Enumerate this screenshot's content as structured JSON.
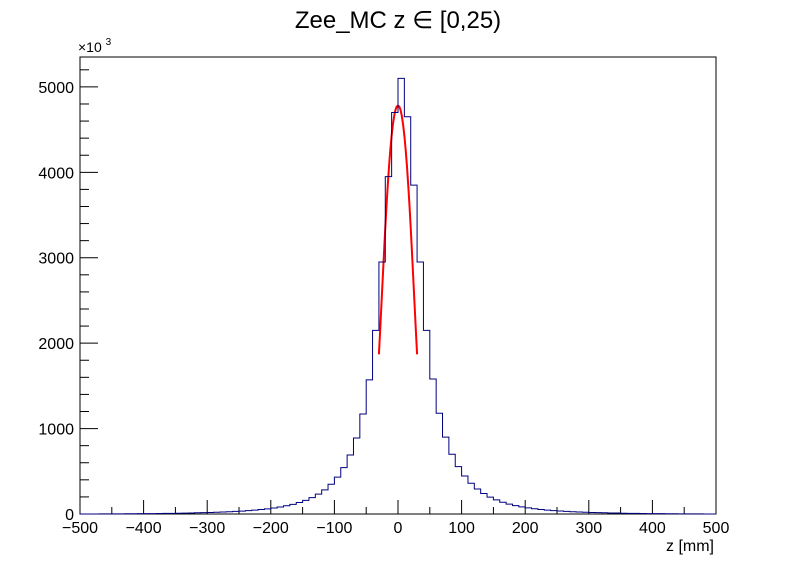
{
  "chart_data": {
    "type": "histogram",
    "title": "Zee_MC z ∈ [0,25)",
    "xlabel": "z [mm]",
    "ylabel": "",
    "y_multiplier_label": "×10",
    "y_multiplier_exponent": "3",
    "xlim": [
      -500,
      500
    ],
    "ylim": [
      0,
      5350
    ],
    "x_ticks": [
      -500,
      -400,
      -300,
      -200,
      -100,
      0,
      100,
      200,
      300,
      400,
      500
    ],
    "y_ticks": [
      0,
      1000,
      2000,
      3000,
      4000,
      5000
    ],
    "grid": false,
    "legend": "none",
    "bin_width": 10,
    "series": [
      {
        "kind": "histogram",
        "color": "#00007f",
        "bin_low_edges": [
          -500,
          -490,
          -480,
          -470,
          -460,
          -450,
          -440,
          -430,
          -420,
          -410,
          -400,
          -390,
          -380,
          -370,
          -360,
          -350,
          -340,
          -330,
          -320,
          -310,
          -300,
          -290,
          -280,
          -270,
          -260,
          -250,
          -240,
          -230,
          -220,
          -210,
          -200,
          -190,
          -180,
          -170,
          -160,
          -150,
          -140,
          -130,
          -120,
          -110,
          -100,
          -90,
          -80,
          -70,
          -60,
          -50,
          -40,
          -30,
          -20,
          -10,
          0,
          10,
          20,
          30,
          40,
          50,
          60,
          70,
          80,
          90,
          100,
          110,
          120,
          130,
          140,
          150,
          160,
          170,
          180,
          190,
          200,
          210,
          220,
          230,
          240,
          250,
          260,
          270,
          280,
          290,
          300,
          310,
          320,
          330,
          340,
          350,
          360,
          370,
          380,
          390,
          400,
          410,
          420,
          430,
          440,
          450,
          460,
          470,
          480,
          490
        ],
        "values": [
          0,
          0,
          0,
          1,
          1,
          2,
          2,
          3,
          3,
          4,
          4,
          5,
          6,
          7,
          8,
          9,
          10,
          12,
          14,
          16,
          18,
          20,
          23,
          26,
          30,
          34,
          39,
          45,
          52,
          60,
          70,
          82,
          96,
          113,
          134,
          160,
          192,
          232,
          283,
          348,
          432,
          543,
          690,
          890,
          1170,
          1570,
          2150,
          2950,
          3950,
          4700,
          5100,
          4650,
          3850,
          2950,
          2150,
          1580,
          1180,
          900,
          700,
          555,
          445,
          360,
          292,
          240,
          198,
          165,
          138,
          116,
          98,
          83,
          71,
          61,
          53,
          46,
          40,
          35,
          31,
          27,
          24,
          21,
          18,
          16,
          14,
          12,
          11,
          9,
          8,
          7,
          6,
          5,
          4,
          4,
          3,
          3,
          2,
          2,
          1,
          1,
          0,
          0
        ]
      },
      {
        "kind": "fit",
        "color": "#ff0000",
        "x": [
          -30,
          -28,
          -26,
          -24,
          -22,
          -20,
          -18,
          -16,
          -14,
          -12,
          -10,
          -8,
          -6,
          -4,
          -2,
          0,
          2,
          4,
          6,
          8,
          10,
          12,
          14,
          16,
          18,
          20,
          22,
          24,
          26,
          28,
          30
        ],
        "y": [
          1870,
          2160,
          2460,
          2760,
          3060,
          3350,
          3620,
          3860,
          4080,
          4270,
          4430,
          4560,
          4660,
          4730,
          4770,
          4780,
          4770,
          4730,
          4660,
          4560,
          4430,
          4270,
          4080,
          3860,
          3620,
          3350,
          3060,
          2760,
          2460,
          2160,
          1870
        ]
      }
    ]
  }
}
